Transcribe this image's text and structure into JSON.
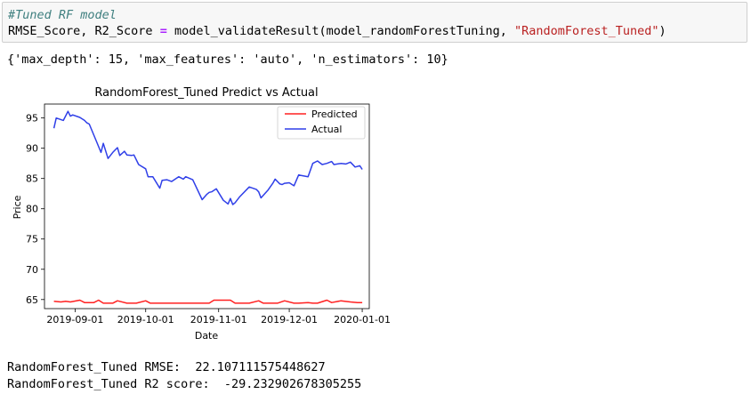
{
  "code_cell": {
    "line1_comment": "#Tuned RF model",
    "line2_part1": "RMSE_Score, R2_Score ",
    "line2_op": "=",
    "line2_part2": " model_validateResult(model_randomForestTuning, ",
    "line2_str": "\"RandomForest_Tuned\"",
    "line2_part3": ")"
  },
  "output": {
    "params_line": "{'max_depth': 15, 'max_features': 'auto', 'n_estimators': 10}",
    "rmse_line": "RandomForest_Tuned RMSE:  22.107111575448627",
    "r2_line": "RandomForest_Tuned R2 score:  -29.232902678305255"
  },
  "chart_data": {
    "type": "line",
    "title": "RandomForest_Tuned Predict vs Actual",
    "xlabel": "Date",
    "ylabel": "Price",
    "x_ticks": [
      "2019-09-01",
      "2019-10-01",
      "2019-11-01",
      "2019-12-01",
      "2020-01-01"
    ],
    "y_ticks": [
      65,
      70,
      75,
      80,
      85,
      90,
      95
    ],
    "xlim": [
      "2019-08-19",
      "2020-01-04"
    ],
    "ylim": [
      63.5,
      97.3
    ],
    "legend_position": "top-right",
    "grid": false,
    "series": [
      {
        "name": "Predicted",
        "color": "#ff2020",
        "x": [
          "2019-08-23",
          "2019-08-26",
          "2019-08-28",
          "2019-08-30",
          "2019-09-03",
          "2019-09-05",
          "2019-09-09",
          "2019-09-11",
          "2019-09-13",
          "2019-09-17",
          "2019-09-19",
          "2019-09-23",
          "2019-09-25",
          "2019-09-27",
          "2019-10-01",
          "2019-10-03",
          "2019-10-07",
          "2019-10-10",
          "2019-10-15",
          "2019-10-18",
          "2019-10-23",
          "2019-10-28",
          "2019-10-30",
          "2019-11-04",
          "2019-11-06",
          "2019-11-08",
          "2019-11-12",
          "2019-11-14",
          "2019-11-18",
          "2019-11-20",
          "2019-11-22",
          "2019-11-26",
          "2019-11-29",
          "2019-12-03",
          "2019-12-05",
          "2019-12-09",
          "2019-12-11",
          "2019-12-13",
          "2019-12-17",
          "2019-12-19",
          "2019-12-23",
          "2019-12-27",
          "2019-12-30",
          "2020-01-01"
        ],
        "y": [
          64.7,
          64.6,
          64.7,
          64.6,
          64.9,
          64.5,
          64.5,
          64.9,
          64.4,
          64.4,
          64.8,
          64.4,
          64.4,
          64.4,
          64.8,
          64.4,
          64.4,
          64.4,
          64.4,
          64.4,
          64.4,
          64.4,
          64.9,
          64.9,
          64.9,
          64.4,
          64.4,
          64.4,
          64.8,
          64.4,
          64.4,
          64.4,
          64.8,
          64.4,
          64.4,
          64.5,
          64.4,
          64.4,
          64.9,
          64.5,
          64.8,
          64.6,
          64.5,
          64.5
        ]
      },
      {
        "name": "Actual",
        "color": "#2f3fe8",
        "x": [
          "2019-08-23",
          "2019-08-24",
          "2019-08-27",
          "2019-08-29",
          "2019-08-30",
          "2019-08-31",
          "2019-09-03",
          "2019-09-05",
          "2019-09-06",
          "2019-09-07",
          "2019-09-10",
          "2019-09-12",
          "2019-09-13",
          "2019-09-15",
          "2019-09-17",
          "2019-09-19",
          "2019-09-20",
          "2019-09-22",
          "2019-09-23",
          "2019-09-25",
          "2019-09-26",
          "2019-09-28",
          "2019-10-01",
          "2019-10-02",
          "2019-10-04",
          "2019-10-07",
          "2019-10-08",
          "2019-10-10",
          "2019-10-12",
          "2019-10-15",
          "2019-10-17",
          "2019-10-18",
          "2019-10-21",
          "2019-10-25",
          "2019-10-27",
          "2019-10-28",
          "2019-10-29",
          "2019-10-31",
          "2019-11-03",
          "2019-11-05",
          "2019-11-06",
          "2019-11-07",
          "2019-11-08",
          "2019-11-10",
          "2019-11-14",
          "2019-11-17",
          "2019-11-18",
          "2019-11-19",
          "2019-11-22",
          "2019-11-24",
          "2019-11-25",
          "2019-11-27",
          "2019-11-28",
          "2019-11-29",
          "2019-12-01",
          "2019-12-03",
          "2019-12-05",
          "2019-12-06",
          "2019-12-09",
          "2019-12-11",
          "2019-12-13",
          "2019-12-15",
          "2019-12-17",
          "2019-12-19",
          "2019-12-20",
          "2019-12-23",
          "2019-12-25",
          "2019-12-27",
          "2019-12-29",
          "2019-12-31",
          "2020-01-01"
        ],
        "y": [
          93.3,
          95.0,
          94.6,
          96.1,
          95.3,
          95.5,
          95.1,
          94.6,
          94.2,
          94.0,
          91.2,
          89.3,
          90.8,
          88.3,
          89.3,
          90.1,
          88.8,
          89.5,
          88.9,
          88.8,
          88.9,
          87.3,
          86.6,
          85.3,
          85.3,
          83.4,
          84.7,
          84.8,
          84.5,
          85.3,
          84.9,
          85.3,
          84.8,
          81.5,
          82.4,
          82.7,
          82.8,
          83.3,
          81.4,
          80.8,
          81.7,
          80.7,
          81.0,
          82.0,
          83.6,
          83.2,
          82.8,
          81.8,
          83.1,
          84.2,
          84.9,
          84.1,
          84.0,
          84.2,
          84.3,
          83.8,
          85.6,
          85.5,
          85.3,
          87.5,
          87.9,
          87.3,
          87.5,
          87.8,
          87.3,
          87.5,
          87.4,
          87.7,
          86.9,
          87.1,
          86.5
        ]
      }
    ]
  }
}
